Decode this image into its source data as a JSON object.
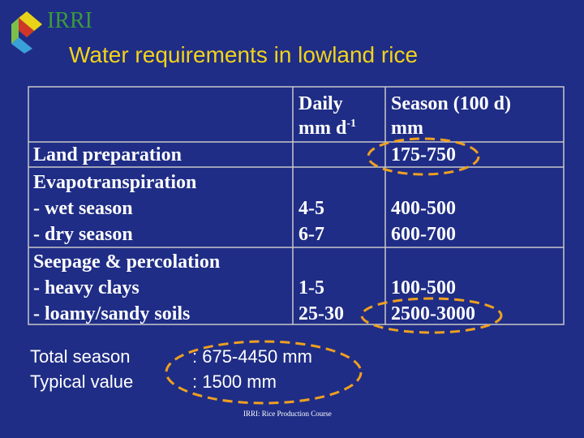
{
  "logo": "IRRI",
  "title": "Water requirements in lowland rice",
  "table": {
    "header": {
      "daily": {
        "line1": "Daily",
        "line2": "mm d",
        "sup": "-1"
      },
      "season": {
        "line1": "Season (100 d)",
        "line2": "mm"
      }
    },
    "rows": [
      {
        "labels": [
          "Land preparation"
        ],
        "season": [
          "175-750"
        ]
      },
      {
        "labels": [
          "Evapotranspiration",
          "- wet season",
          "- dry season"
        ],
        "daily": [
          "4-5",
          "6-7"
        ],
        "season": [
          "400-500",
          "600-700"
        ]
      },
      {
        "labels": [
          "Seepage & percolation",
          "- heavy clays",
          "- loamy/sandy soils"
        ],
        "daily": [
          "1-5",
          "25-30"
        ],
        "season": [
          "100-500",
          "2500-3000"
        ]
      }
    ]
  },
  "summary": [
    {
      "label": "Total season",
      "value": ": 675-4450 mm"
    },
    {
      "label": "Typical value",
      "value": ": 1500 mm"
    }
  ],
  "footer": "IRRI: Rice Production Course"
}
